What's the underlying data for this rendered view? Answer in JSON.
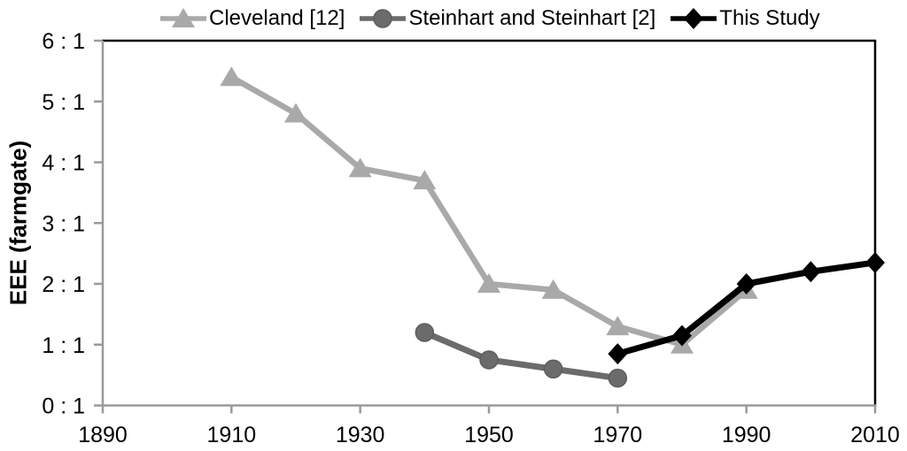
{
  "legend": [
    {
      "name": "Cleveland [12]",
      "marker": "triangle",
      "color": "#A9A9A9"
    },
    {
      "name": "Steinhart and Steinhart [2]",
      "marker": "circle",
      "color": "#6B6B6B"
    },
    {
      "name": "This Study",
      "marker": "diamond",
      "color": "#000000"
    }
  ],
  "chart_data": {
    "type": "line",
    "title": "",
    "xlabel": "",
    "ylabel": "EEE (farmgate)",
    "xlim": [
      1890,
      2010
    ],
    "ylim": [
      0,
      6
    ],
    "x_ticks": [
      1890,
      1910,
      1930,
      1950,
      1970,
      1990,
      2010
    ],
    "y_ticks": [
      {
        "value": 0,
        "label": "0 : 1"
      },
      {
        "value": 1,
        "label": "1 : 1"
      },
      {
        "value": 2,
        "label": "2 : 1"
      },
      {
        "value": 3,
        "label": "3 : 1"
      },
      {
        "value": 4,
        "label": "4 : 1"
      },
      {
        "value": 5,
        "label": "5 : 1"
      },
      {
        "value": 6,
        "label": "6 : 1"
      }
    ],
    "grid": false,
    "legend_position": "top",
    "series": [
      {
        "name": "Cleveland [12]",
        "marker": "triangle",
        "color": "#A9A9A9",
        "points": [
          [
            1910,
            5.4
          ],
          [
            1920,
            4.8
          ],
          [
            1930,
            3.9
          ],
          [
            1940,
            3.7
          ],
          [
            1950,
            2.0
          ],
          [
            1960,
            1.9
          ],
          [
            1970,
            1.3
          ],
          [
            1980,
            1.0
          ],
          [
            1990,
            1.9
          ]
        ]
      },
      {
        "name": "Steinhart and Steinhart [2]",
        "marker": "circle",
        "color": "#6B6B6B",
        "points": [
          [
            1940,
            1.2
          ],
          [
            1950,
            0.75
          ],
          [
            1960,
            0.6
          ],
          [
            1970,
            0.45
          ]
        ]
      },
      {
        "name": "This Study",
        "marker": "diamond",
        "color": "#000000",
        "points": [
          [
            1970,
            0.85
          ],
          [
            1980,
            1.15
          ],
          [
            1990,
            2.0
          ],
          [
            2000,
            2.2
          ],
          [
            2010,
            2.35
          ]
        ]
      }
    ]
  },
  "colors": {
    "axis_gray": "#9A9A9A",
    "plot_border_black": "#000000",
    "text": "#000000",
    "background": "#FFFFFF"
  }
}
